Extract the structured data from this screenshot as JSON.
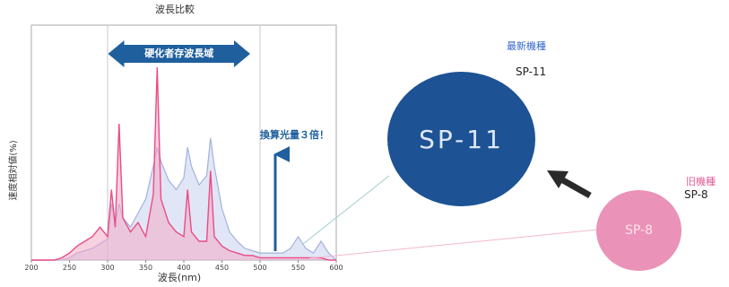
{
  "chart_data": {
    "type": "line",
    "title": "波長比較",
    "xlabel": "波長(nm)",
    "ylabel": "速度相対値(%)",
    "xlim": [
      200,
      600
    ],
    "ylim": [
      0,
      100
    ],
    "x_ticks": [
      "200",
      "250",
      "300",
      "350",
      "400",
      "450",
      "500",
      "550",
      "600"
    ],
    "x": [
      200,
      210,
      220,
      230,
      240,
      250,
      260,
      270,
      280,
      290,
      300,
      305,
      310,
      315,
      320,
      330,
      340,
      350,
      360,
      365,
      370,
      380,
      390,
      400,
      405,
      410,
      420,
      430,
      435,
      440,
      450,
      460,
      470,
      480,
      490,
      500,
      510,
      520,
      530,
      540,
      550,
      560,
      570,
      580,
      590,
      600
    ],
    "series": [
      {
        "values": [
          0,
          0,
          0,
          0,
          1,
          3,
          6,
          8,
          10,
          14,
          10,
          30,
          14,
          58,
          18,
          12,
          16,
          10,
          28,
          82,
          26,
          16,
          12,
          10,
          30,
          12,
          8,
          8,
          38,
          10,
          6,
          4,
          3,
          2,
          2,
          1,
          1,
          1,
          1,
          1,
          1,
          1,
          1,
          1,
          0,
          0
        ]
      },
      {
        "values": [
          0,
          0,
          0,
          0,
          0,
          1,
          3,
          4,
          5,
          7,
          9,
          24,
          16,
          24,
          18,
          14,
          20,
          26,
          40,
          48,
          42,
          34,
          30,
          35,
          48,
          40,
          32,
          36,
          52,
          40,
          22,
          12,
          8,
          5,
          4,
          3,
          3,
          3,
          3,
          5,
          10,
          5,
          3,
          8,
          3,
          0
        ]
      }
    ],
    "annotations": [
      {
        "text": "硬化者存波長域",
        "type": "double-arrow",
        "x_range": [
          310,
          480
        ]
      },
      {
        "text": "換算光量３倍！",
        "type": "up-arrow",
        "x": 520
      }
    ],
    "grid": false,
    "legend": "none"
  },
  "panels": {
    "new": {
      "caption1": "最新機種",
      "caption2": "SP-11",
      "circle_label": "SP-11"
    },
    "old": {
      "caption1": "旧機種",
      "caption2": "SP-8",
      "circle_label": "SP-8"
    }
  },
  "colors": {
    "pink_series": "#e94c86",
    "blue_series": "#a3b2de",
    "arrow_blue": "#1f5f9e",
    "big_circle": "#1d5394",
    "small_circle": "#eb92b8",
    "caption_blue": "#3366cc",
    "caption_pink": "#e05a93",
    "pointer_arrow": "#2a2a2a"
  }
}
